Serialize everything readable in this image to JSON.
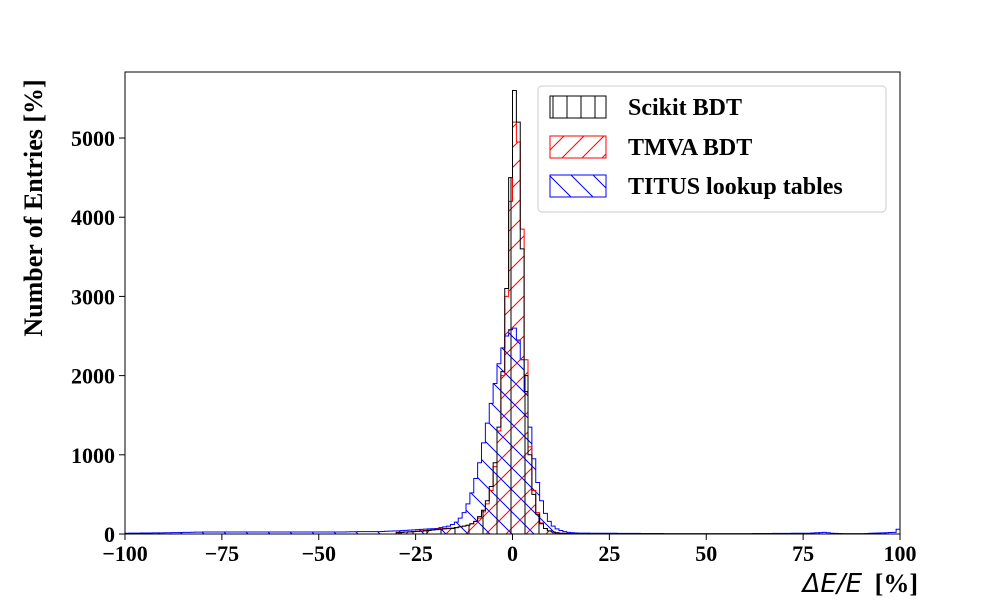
{
  "chart_data": {
    "type": "histogram",
    "xlabel_math": "ΔE/E",
    "xlabel_unit": "[%]",
    "ylabel": "Number of Entries [%]",
    "xlim": [
      -100,
      100
    ],
    "ylim": [
      0,
      5850
    ],
    "x_ticks": [
      -100,
      -75,
      -50,
      -25,
      0,
      25,
      50,
      75,
      100
    ],
    "x_tick_labels": [
      "−100",
      "−75",
      "−50",
      "−25",
      "0",
      "25",
      "50",
      "75",
      "100"
    ],
    "y_ticks": [
      0,
      1000,
      2000,
      3000,
      4000,
      5000
    ],
    "y_tick_labels": [
      "0",
      "1000",
      "2000",
      "3000",
      "4000",
      "5000"
    ],
    "grid": false,
    "legend_position": "top-right",
    "bin_width": 1,
    "series": [
      {
        "name": "Scikit BDT",
        "color": "#000000",
        "hatch": "vertical",
        "bins": [
          [
            -30,
            15
          ],
          [
            -28,
            25
          ],
          [
            -26,
            30
          ],
          [
            -24,
            35
          ],
          [
            -22,
            45
          ],
          [
            -20,
            55
          ],
          [
            -18,
            65
          ],
          [
            -16,
            70
          ],
          [
            -15,
            80
          ],
          [
            -14,
            90
          ],
          [
            -13,
            100
          ],
          [
            -12,
            110
          ],
          [
            -11,
            130
          ],
          [
            -10,
            160
          ],
          [
            -9,
            220
          ],
          [
            -8,
            300
          ],
          [
            -7,
            420
          ],
          [
            -6,
            600
          ],
          [
            -5,
            900
          ],
          [
            -4,
            1350
          ],
          [
            -3,
            2050
          ],
          [
            -2,
            3100
          ],
          [
            -1,
            4500
          ],
          [
            0,
            5600
          ],
          [
            1,
            5200
          ],
          [
            2,
            3600
          ],
          [
            3,
            2000
          ],
          [
            4,
            1000
          ],
          [
            5,
            500
          ],
          [
            6,
            250
          ],
          [
            7,
            130
          ],
          [
            8,
            70
          ],
          [
            9,
            40
          ],
          [
            10,
            25
          ],
          [
            11,
            15
          ],
          [
            12,
            10
          ],
          [
            13,
            8
          ],
          [
            14,
            6
          ],
          [
            15,
            5
          ]
        ]
      },
      {
        "name": "TMVA BDT",
        "color": "#ff0000",
        "hatch": "diagonal-up",
        "bins": [
          [
            -30,
            20
          ],
          [
            -28,
            25
          ],
          [
            -26,
            30
          ],
          [
            -24,
            40
          ],
          [
            -22,
            50
          ],
          [
            -20,
            60
          ],
          [
            -18,
            70
          ],
          [
            -16,
            75
          ],
          [
            -15,
            80
          ],
          [
            -14,
            90
          ],
          [
            -13,
            100
          ],
          [
            -12,
            110
          ],
          [
            -11,
            130
          ],
          [
            -10,
            160
          ],
          [
            -9,
            200
          ],
          [
            -8,
            280
          ],
          [
            -7,
            380
          ],
          [
            -6,
            550
          ],
          [
            -5,
            850
          ],
          [
            -4,
            1300
          ],
          [
            -3,
            2000
          ],
          [
            -2,
            3000
          ],
          [
            -1,
            4200
          ],
          [
            0,
            5200
          ],
          [
            1,
            4950
          ],
          [
            2,
            3850
          ],
          [
            3,
            2200
          ],
          [
            4,
            1100
          ],
          [
            5,
            550
          ],
          [
            6,
            270
          ],
          [
            7,
            140
          ],
          [
            8,
            70
          ],
          [
            9,
            40
          ],
          [
            10,
            25
          ],
          [
            11,
            15
          ],
          [
            12,
            10
          ],
          [
            13,
            8
          ],
          [
            14,
            6
          ],
          [
            15,
            5
          ]
        ]
      },
      {
        "name": "TITUS lookup tables",
        "color": "#0000ff",
        "hatch": "diagonal-down",
        "bins": [
          [
            -30,
            40
          ],
          [
            -25,
            55
          ],
          [
            -20,
            70
          ],
          [
            -18,
            90
          ],
          [
            -17,
            100
          ],
          [
            -16,
            120
          ],
          [
            -15,
            150
          ],
          [
            -14,
            200
          ],
          [
            -13,
            270
          ],
          [
            -12,
            380
          ],
          [
            -11,
            520
          ],
          [
            -10,
            700
          ],
          [
            -9,
            900
          ],
          [
            -8,
            1150
          ],
          [
            -7,
            1400
          ],
          [
            -6,
            1650
          ],
          [
            -5,
            1900
          ],
          [
            -4,
            2150
          ],
          [
            -3,
            2350
          ],
          [
            -2,
            2500
          ],
          [
            -1,
            2580
          ],
          [
            0,
            2600
          ],
          [
            1,
            2450
          ],
          [
            2,
            2200
          ],
          [
            3,
            1800
          ],
          [
            4,
            1350
          ],
          [
            5,
            950
          ],
          [
            6,
            650
          ],
          [
            7,
            420
          ],
          [
            8,
            260
          ],
          [
            9,
            160
          ],
          [
            10,
            100
          ],
          [
            11,
            65
          ],
          [
            12,
            45
          ],
          [
            13,
            30
          ],
          [
            14,
            20
          ],
          [
            15,
            15
          ],
          [
            16,
            12
          ],
          [
            20,
            10
          ],
          [
            30,
            8
          ],
          [
            40,
            5
          ],
          [
            60,
            5
          ],
          [
            76,
            10
          ],
          [
            78,
            15
          ],
          [
            80,
            20
          ],
          [
            82,
            10
          ],
          [
            85,
            5
          ],
          [
            90,
            5
          ],
          [
            98,
            20
          ],
          [
            99,
            60
          ]
        ],
        "tail_left": [
          [
            -100,
            10
          ],
          [
            -90,
            15
          ],
          [
            -80,
            25
          ],
          [
            -70,
            25
          ],
          [
            -60,
            25
          ],
          [
            -50,
            25
          ],
          [
            -45,
            25
          ],
          [
            -40,
            30
          ],
          [
            -35,
            30
          ]
        ]
      }
    ]
  }
}
